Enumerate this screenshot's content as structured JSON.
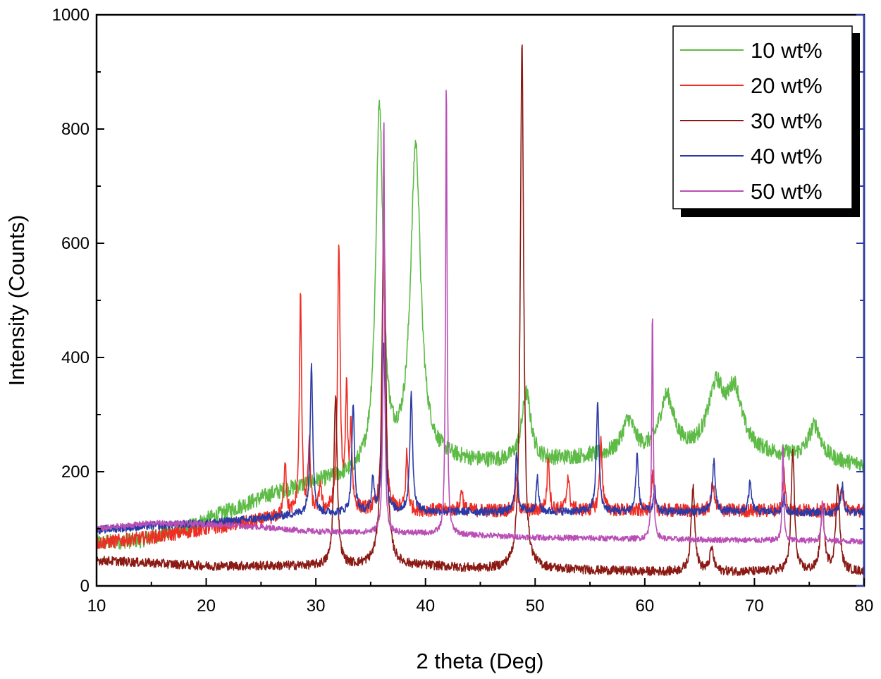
{
  "chart_data": {
    "type": "line",
    "title": "",
    "xlabel": "2 theta (Deg)",
    "ylabel": "Intensity (Counts)",
    "xlim": [
      10,
      80
    ],
    "ylim": [
      0,
      1000
    ],
    "x_ticks": [
      10,
      20,
      30,
      40,
      50,
      60,
      70,
      80
    ],
    "y_ticks": [
      0,
      200,
      400,
      600,
      800,
      1000
    ],
    "x_tick_labels": [
      "10",
      "20",
      "30",
      "40",
      "50",
      "60",
      "70",
      "80"
    ],
    "y_tick_labels": [
      "0",
      "200",
      "400",
      "600",
      "800",
      "1000"
    ],
    "grid": false,
    "legend_position": "top-right",
    "noise_note": "series values are baseline points plus Lorentzian peaks with fine noise",
    "series": [
      {
        "name": "10 wt%",
        "color": "#5dbb46",
        "baseline": [
          [
            10,
            75
          ],
          [
            14,
            80
          ],
          [
            18,
            100
          ],
          [
            22,
            130
          ],
          [
            26,
            160
          ],
          [
            30,
            180
          ],
          [
            33,
            190
          ],
          [
            35,
            200
          ],
          [
            40,
            220
          ],
          [
            45,
            215
          ],
          [
            50,
            215
          ],
          [
            55,
            225
          ],
          [
            60,
            225
          ],
          [
            65,
            230
          ],
          [
            70,
            230
          ],
          [
            75,
            220
          ],
          [
            80,
            210
          ]
        ],
        "peaks": [
          [
            35.8,
            630,
            0.4
          ],
          [
            39.1,
            550,
            0.55
          ],
          [
            49.2,
            120,
            0.5
          ],
          [
            58.5,
            60,
            0.7
          ],
          [
            62.0,
            100,
            0.8
          ],
          [
            66.5,
            110,
            0.9
          ],
          [
            68.2,
            100,
            0.8
          ],
          [
            75.5,
            60,
            0.7
          ]
        ],
        "noise": 14
      },
      {
        "name": "20 wt%",
        "color": "#ee2e24",
        "baseline": [
          [
            10,
            75
          ],
          [
            15,
            85
          ],
          [
            20,
            100
          ],
          [
            25,
            115
          ],
          [
            28,
            125
          ],
          [
            32,
            130
          ],
          [
            40,
            132
          ],
          [
            50,
            132
          ],
          [
            60,
            132
          ],
          [
            70,
            132
          ],
          [
            80,
            132
          ]
        ],
        "peaks": [
          [
            27.2,
            100,
            0.12
          ],
          [
            28.6,
            380,
            0.12
          ],
          [
            29.4,
            120,
            0.12
          ],
          [
            30.4,
            50,
            0.12
          ],
          [
            32.1,
            455,
            0.14
          ],
          [
            32.8,
            200,
            0.12
          ],
          [
            33.2,
            140,
            0.12
          ],
          [
            36.2,
            480,
            0.15
          ],
          [
            38.3,
            100,
            0.12
          ],
          [
            43.3,
            40,
            0.12
          ],
          [
            48.3,
            60,
            0.12
          ],
          [
            51.2,
            100,
            0.12
          ],
          [
            53.0,
            60,
            0.15
          ],
          [
            56.0,
            120,
            0.15
          ],
          [
            60.7,
            60,
            0.12
          ],
          [
            66.2,
            50,
            0.15
          ],
          [
            72.7,
            70,
            0.12
          ],
          [
            78.0,
            40,
            0.15
          ]
        ],
        "noise": 12
      },
      {
        "name": "30 wt%",
        "color": "#8b1a14",
        "baseline": [
          [
            10,
            45
          ],
          [
            20,
            35
          ],
          [
            30,
            35
          ],
          [
            40,
            35
          ],
          [
            45,
            30
          ],
          [
            50,
            30
          ],
          [
            60,
            25
          ],
          [
            70,
            25
          ],
          [
            80,
            25
          ]
        ],
        "peaks": [
          [
            31.8,
            300,
            0.18
          ],
          [
            36.2,
            600,
            0.22
          ],
          [
            48.8,
            920,
            0.18
          ],
          [
            64.4,
            150,
            0.2
          ],
          [
            66.1,
            40,
            0.2
          ],
          [
            73.5,
            210,
            0.18
          ],
          [
            76.2,
            110,
            0.22
          ],
          [
            77.6,
            155,
            0.2
          ]
        ],
        "noise": 8
      },
      {
        "name": "40 wt%",
        "color": "#2b3aa6",
        "baseline": [
          [
            10,
            98
          ],
          [
            15,
            105
          ],
          [
            20,
            110
          ],
          [
            25,
            118
          ],
          [
            28,
            125
          ],
          [
            32,
            128
          ],
          [
            40,
            130
          ],
          [
            50,
            130
          ],
          [
            60,
            130
          ],
          [
            70,
            130
          ],
          [
            80,
            128
          ]
        ],
        "peaks": [
          [
            29.6,
            265,
            0.14
          ],
          [
            33.4,
            190,
            0.14
          ],
          [
            35.2,
            60,
            0.12
          ],
          [
            36.2,
            300,
            0.15
          ],
          [
            38.7,
            205,
            0.15
          ],
          [
            48.3,
            100,
            0.14
          ],
          [
            50.2,
            60,
            0.12
          ],
          [
            55.7,
            190,
            0.15
          ],
          [
            59.3,
            100,
            0.14
          ],
          [
            60.9,
            40,
            0.12
          ],
          [
            66.3,
            90,
            0.15
          ],
          [
            69.6,
            50,
            0.15
          ],
          [
            72.7,
            30,
            0.12
          ],
          [
            78.0,
            50,
            0.15
          ]
        ],
        "noise": 7
      },
      {
        "name": "50 wt%",
        "color": "#b94fb6",
        "baseline": [
          [
            10,
            100
          ],
          [
            15,
            110
          ],
          [
            20,
            108
          ],
          [
            25,
            103
          ],
          [
            30,
            95
          ],
          [
            40,
            92
          ],
          [
            50,
            85
          ],
          [
            60,
            82
          ],
          [
            70,
            80
          ],
          [
            80,
            78
          ]
        ],
        "peaks": [
          [
            36.2,
            740,
            0.08
          ],
          [
            41.9,
            800,
            0.08
          ],
          [
            60.7,
            395,
            0.08
          ],
          [
            72.6,
            170,
            0.08
          ],
          [
            76.2,
            70,
            0.1
          ]
        ],
        "noise": 5
      }
    ]
  }
}
